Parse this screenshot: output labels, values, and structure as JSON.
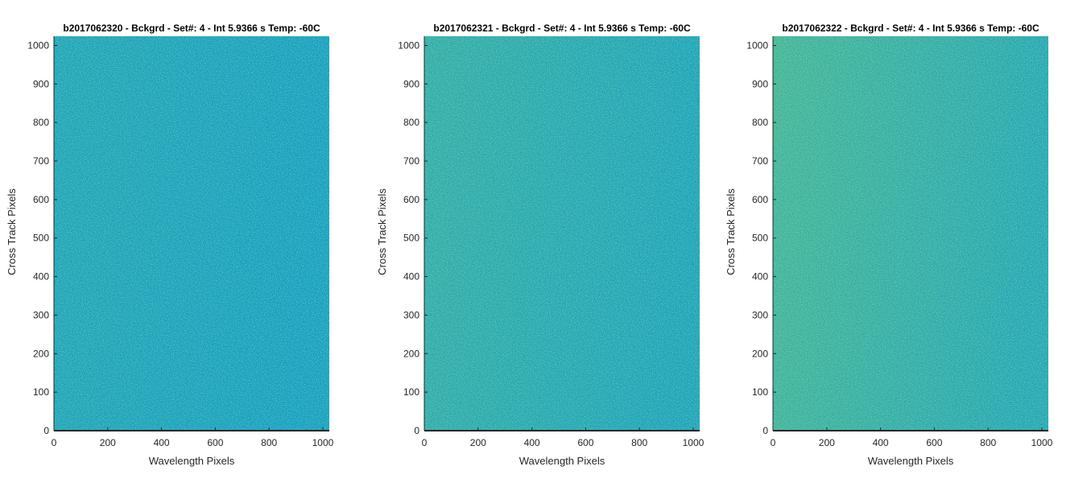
{
  "colors": {
    "background": "#ffffff",
    "axis": "#262626",
    "plot_base": "#12a0c3",
    "plot_warm": "#45b895",
    "noise_light": "#9fd07a",
    "noise_dark": "#0e88c0"
  },
  "chart_data": [
    {
      "type": "heatmap",
      "title": "b2017062320 - Bckgrd - Set#: 4 - Int 5.9366 s Temp: -60C",
      "xlabel": "Wavelength Pixels",
      "ylabel": "Cross Track Pixels",
      "xlim": [
        0,
        1024
      ],
      "ylim": [
        0,
        1024
      ],
      "xticks": [
        0,
        200,
        400,
        600,
        800,
        1000
      ],
      "yticks": [
        0,
        100,
        200,
        300,
        400,
        500,
        600,
        700,
        800,
        900,
        1000
      ],
      "warmth_left": 0.2,
      "warmth_right": 0.0
    },
    {
      "type": "heatmap",
      "title": "b2017062321 - Bckgrd - Set#: 4 - Int 5.9366 s Temp: -60C",
      "xlabel": "Wavelength Pixels",
      "ylabel": "Cross Track Pixels",
      "xlim": [
        0,
        1024
      ],
      "ylim": [
        0,
        1024
      ],
      "xticks": [
        0,
        200,
        400,
        600,
        800,
        1000
      ],
      "yticks": [
        0,
        100,
        200,
        300,
        400,
        500,
        600,
        700,
        800,
        900,
        1000
      ],
      "warmth_left": 0.55,
      "warmth_right": 0.15
    },
    {
      "type": "heatmap",
      "title": "b2017062322 - Bckgrd - Set#: 4 - Int 5.9366 s Temp: -60C",
      "xlabel": "Wavelength Pixels",
      "ylabel": "Cross Track Pixels",
      "xlim": [
        0,
        1024
      ],
      "ylim": [
        0,
        1024
      ],
      "xticks": [
        0,
        200,
        400,
        600,
        800,
        1000
      ],
      "yticks": [
        0,
        100,
        200,
        300,
        400,
        500,
        600,
        700,
        800,
        900,
        1000
      ],
      "warmth_left": 0.9,
      "warmth_right": 0.3
    }
  ]
}
